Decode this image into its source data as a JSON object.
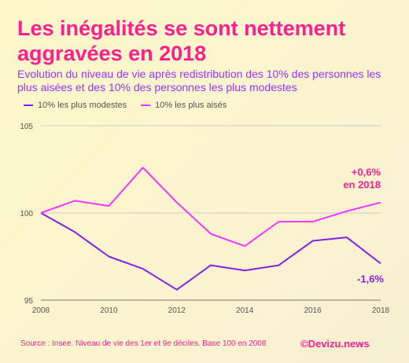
{
  "header": {
    "title": "Les inégalités se sont nettement aggravées en 2018",
    "subtitle": "Evolution du niveau de vie après redistribution des 10% des personnes les plus aisées et des 10% des personnes les plus modestes"
  },
  "footer": {
    "source": "Source : Insee. Niveau de vie des 1er et 9e déciles. Base 100 en 2008",
    "brand": "©Devizu.news"
  },
  "colors": {
    "modestes": "#8a1ee6",
    "aises": "#ff33ff",
    "accent": "#ff1f8e",
    "grid": "#cccccc"
  },
  "chart_data": {
    "type": "line",
    "x": [
      2008,
      2009,
      2010,
      2011,
      2012,
      2013,
      2014,
      2015,
      2016,
      2017,
      2018
    ],
    "series": [
      {
        "name": "10% les plus modestes",
        "color": "#8a1ee6",
        "values": [
          100,
          98.9,
          97.5,
          96.8,
          95.6,
          97.0,
          96.7,
          97.0,
          98.4,
          98.6,
          97.1
        ]
      },
      {
        "name": "10% les plus aisés",
        "color": "#ff33ff",
        "values": [
          100,
          100.7,
          100.4,
          102.6,
          100.6,
          98.8,
          98.1,
          99.5,
          99.5,
          100.1,
          100.6
        ]
      }
    ],
    "ylim": [
      95,
      105
    ],
    "y_ticks": [
      95,
      100,
      105
    ],
    "x_ticks": [
      2008,
      2010,
      2012,
      2014,
      2016,
      2018
    ],
    "grid": "horizontal",
    "legend": "top-left",
    "annotations": [
      {
        "lines": [
          "+0,6%",
          "en 2018"
        ],
        "color": "#ff1f8e"
      },
      {
        "lines": [
          "-1,6%"
        ],
        "color": "#8a1ee6"
      }
    ]
  }
}
